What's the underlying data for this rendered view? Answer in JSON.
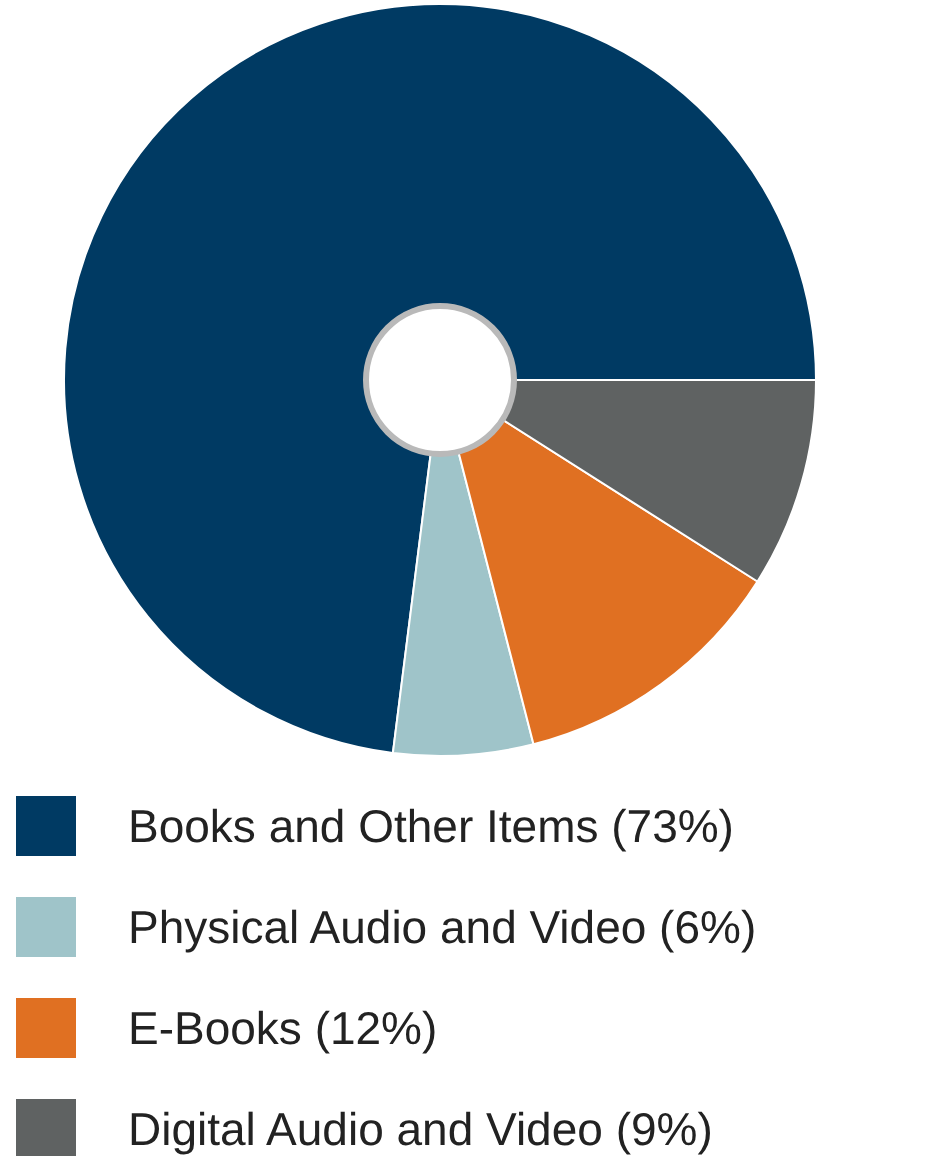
{
  "chart_data": {
    "type": "donut",
    "categories": [
      "Books and Other Items",
      "Physical Audio and Video",
      "E-Books",
      "Digital Audio and Video"
    ],
    "values": [
      73,
      6,
      12,
      9
    ],
    "value_labels": [
      "(73%)",
      "(6%)",
      "(12%)",
      "(9%)"
    ],
    "colors": [
      "#003a63",
      "#9fc4c9",
      "#e07022",
      "#5f6262"
    ],
    "legend": "bottom"
  }
}
